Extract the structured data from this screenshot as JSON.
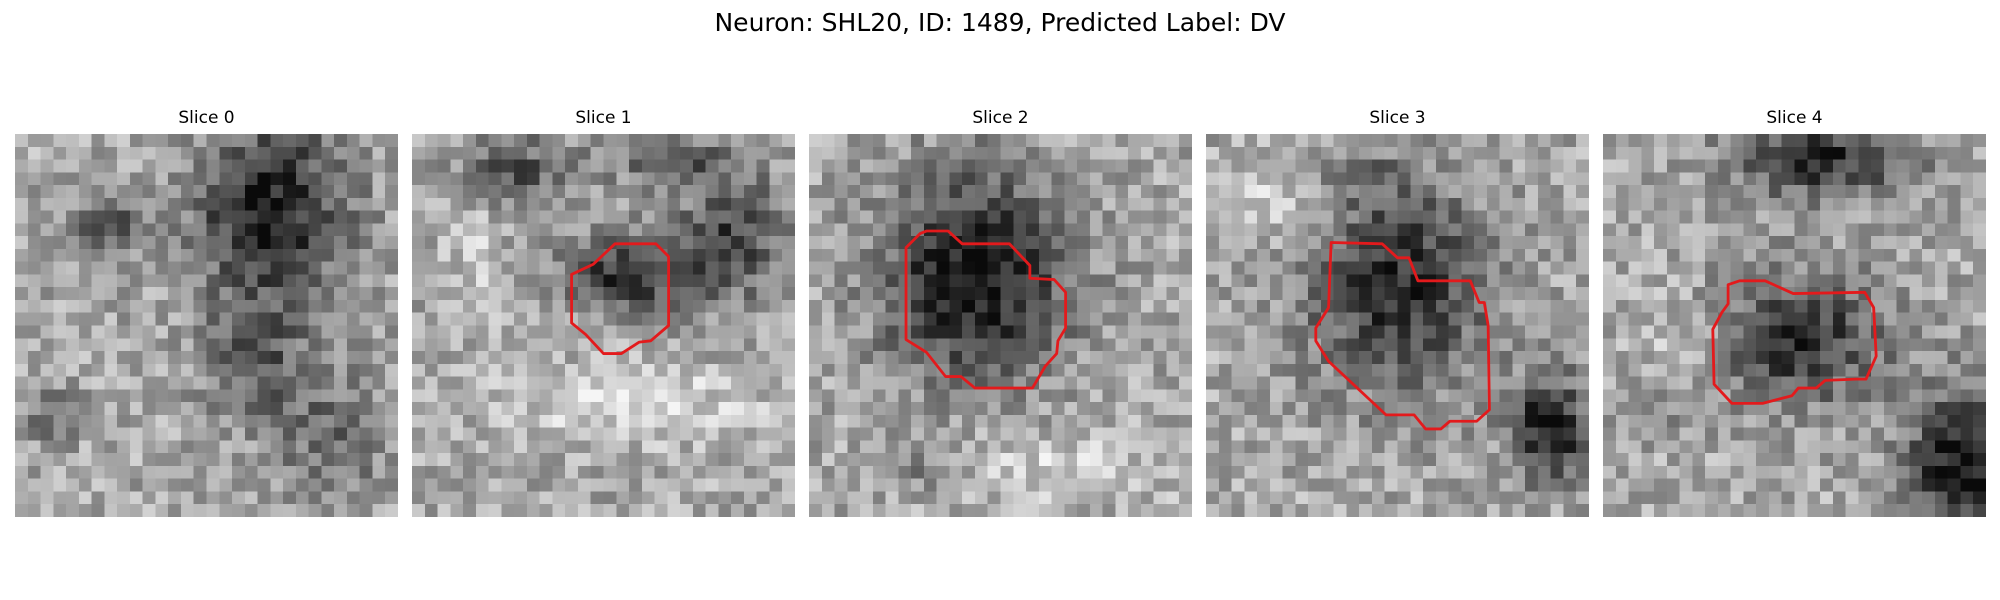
{
  "figure": {
    "title": "Neuron: SHL20, ID: 1489, Predicted Label: DV"
  },
  "colors": {
    "contour": "#e31a1c",
    "background": "#ffffff"
  },
  "slices": [
    {
      "title": "Slice 0",
      "has_contour": false
    },
    {
      "title": "Slice 1",
      "has_contour": true
    },
    {
      "title": "Slice 2",
      "has_contour": true
    },
    {
      "title": "Slice 3",
      "has_contour": true
    },
    {
      "title": "Slice 4",
      "has_contour": true
    }
  ]
}
